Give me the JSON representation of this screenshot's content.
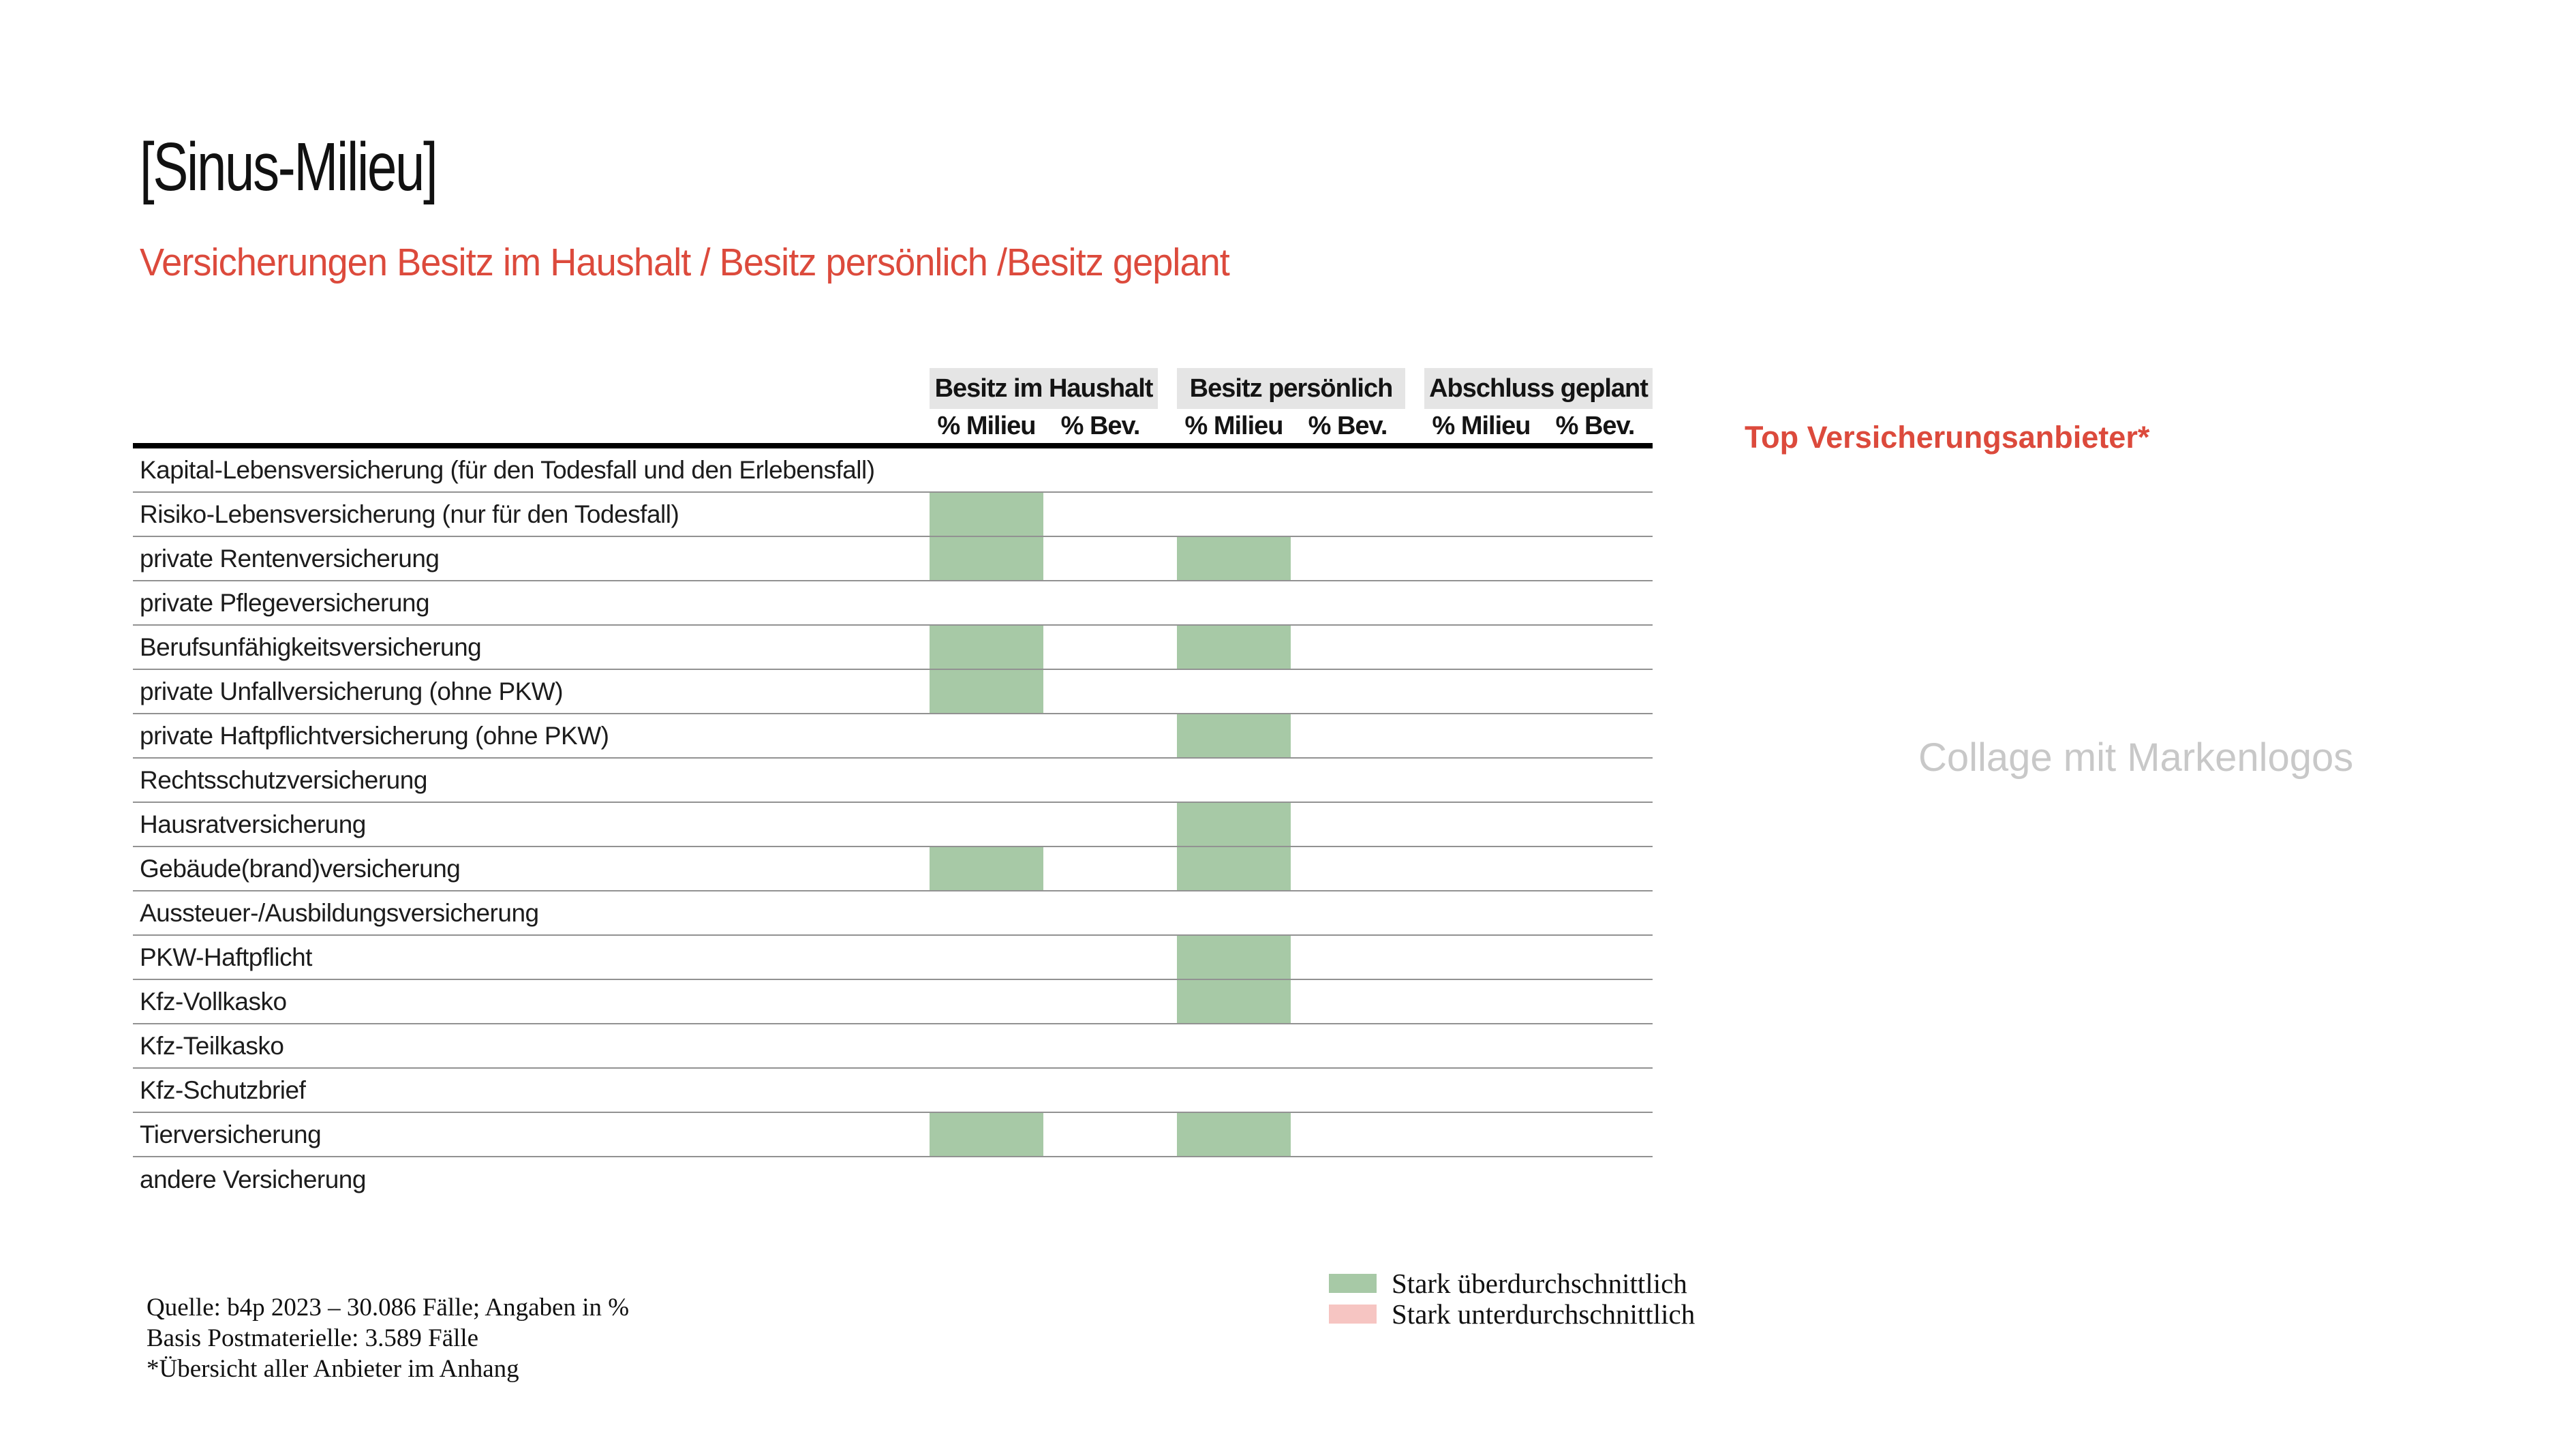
{
  "slide": {
    "title": "[Sinus-Milieu]",
    "subtitle": "Versicherungen Besitz im Haushalt / Besitz persönlich /Besitz geplant"
  },
  "table": {
    "group_headers": [
      {
        "label": "Besitz im Haushalt"
      },
      {
        "label": "Besitz persönlich"
      },
      {
        "label": "Abschluss geplant"
      }
    ],
    "sub_headers": [
      "% Milieu",
      "% Bev.",
      "% Milieu",
      "% Bev.",
      "% Milieu",
      "% Bev."
    ],
    "rows": [
      {
        "label": "Kapital-Lebensversicherung (für den Todesfall und den Erlebensfall)",
        "highlights": []
      },
      {
        "label": "Risiko-Lebensversicherung (nur für den Todesfall)",
        "highlights": [
          0
        ]
      },
      {
        "label": "private Rentenversicherung",
        "highlights": [
          0,
          2
        ]
      },
      {
        "label": "private Pflegeversicherung",
        "highlights": []
      },
      {
        "label": "Berufsunfähigkeitsversicherung",
        "highlights": [
          0,
          2
        ]
      },
      {
        "label": "private Unfallversicherung (ohne PKW)",
        "highlights": [
          0
        ]
      },
      {
        "label": "private Haftpflichtversicherung (ohne PKW)",
        "highlights": [
          2
        ]
      },
      {
        "label": "Rechtsschutzversicherung",
        "highlights": []
      },
      {
        "label": "Hausratversicherung",
        "highlights": [
          2
        ]
      },
      {
        "label": "Gebäude(brand)versicherung",
        "highlights": [
          0,
          2
        ]
      },
      {
        "label": "Aussteuer-/Ausbildungsversicherung",
        "highlights": []
      },
      {
        "label": "PKW-Haftpflicht",
        "highlights": [
          2
        ]
      },
      {
        "label": "Kfz-Vollkasko",
        "highlights": [
          2
        ]
      },
      {
        "label": "Kfz-Teilkasko",
        "highlights": []
      },
      {
        "label": "Kfz-Schutzbrief",
        "highlights": []
      },
      {
        "label": "Tierversicherung",
        "highlights": [
          0,
          2
        ]
      },
      {
        "label": "andere Versicherung",
        "highlights": []
      }
    ]
  },
  "annotations": {
    "right_title": "Top Versicherungsanbieter*",
    "placeholder": "Collage mit Markenlogos"
  },
  "legend": [
    {
      "label": "Stark überdurchschnittlich",
      "color": "#a7c9a6"
    },
    {
      "label": "Stark unterdurchschnittlich",
      "color": "#f6c5c2"
    }
  ],
  "footnotes": [
    "Quelle: b4p 2023 – 30.086 Fälle; Angaben in %",
    "Basis Postmaterielle: 3.589 Fälle",
    "*Übersicht aller Anbieter im Anhang"
  ],
  "colors": {
    "accent_red": "#dc4a3c",
    "highlight_over": "#a7c9a6",
    "highlight_under": "#f6c5c2",
    "header_box_gray": "#e5e5e5",
    "placeholder_gray": "#c8c8c8",
    "row_line_gray": "#929292"
  }
}
